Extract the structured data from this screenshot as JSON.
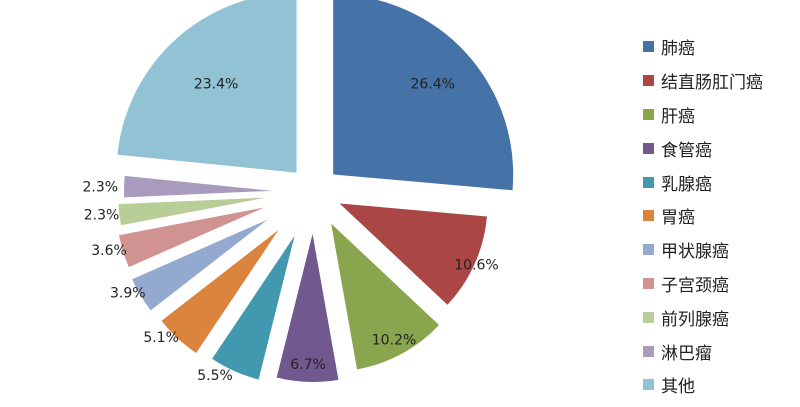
{
  "chart_data": {
    "type": "pie",
    "exploded": true,
    "legend_position": "right",
    "categories": [
      "肺癌",
      "结直肠肛门癌",
      "肝癌",
      "食管癌",
      "乳腺癌",
      "胃癌",
      "甲状腺癌",
      "子宫颈癌",
      "前列腺癌",
      "淋巴瘤",
      "其他"
    ],
    "values": [
      26.4,
      10.6,
      10.2,
      6.7,
      5.5,
      5.1,
      3.9,
      3.6,
      2.3,
      2.3,
      23.4
    ],
    "value_labels": [
      "26.4%",
      "10.6%",
      "10.2%",
      "6.7%",
      "5.5%",
      "5.1%",
      "3.9%",
      "3.6%",
      "2.3%",
      "2.3%",
      "23.4%"
    ],
    "colors": [
      "#4572A7",
      "#AA4643",
      "#89A54E",
      "#71588F",
      "#4198AF",
      "#DB843D",
      "#93A9CF",
      "#D19392",
      "#B9CD96",
      "#A99BBD",
      "#92C3D5"
    ]
  }
}
